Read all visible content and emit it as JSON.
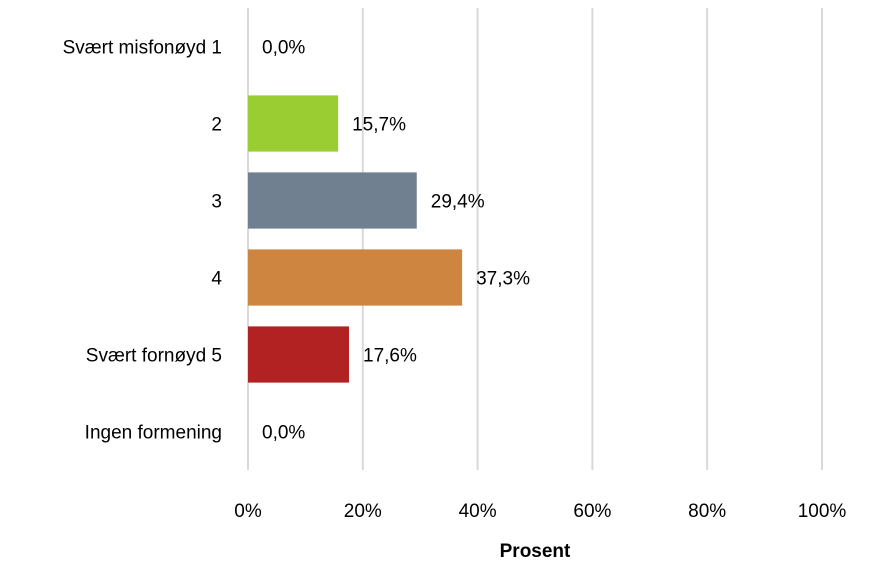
{
  "chart_data": {
    "type": "bar",
    "orientation": "horizontal",
    "categories": [
      "Svært misfonøyd 1",
      "2",
      "3",
      "4",
      "Svært fornøyd 5",
      "Ingen formening"
    ],
    "values": [
      0.0,
      15.7,
      29.4,
      37.3,
      17.6,
      0.0
    ],
    "value_labels": [
      "0,0%",
      "15,7%",
      "29,4%",
      "37,3%",
      "17,6%",
      "0,0%"
    ],
    "colors": [
      "#4472c4",
      "#9acd32",
      "#708090",
      "#cd853f",
      "#b22222",
      "#a5a5a5"
    ],
    "xlabel": "Prosent",
    "ylabel": "",
    "xlim": [
      0,
      100
    ],
    "xticks": [
      0,
      20,
      40,
      60,
      80,
      100
    ],
    "xtick_labels": [
      "0%",
      "20%",
      "40%",
      "60%",
      "80%",
      "100%"
    ],
    "grid": true,
    "legend": false
  }
}
